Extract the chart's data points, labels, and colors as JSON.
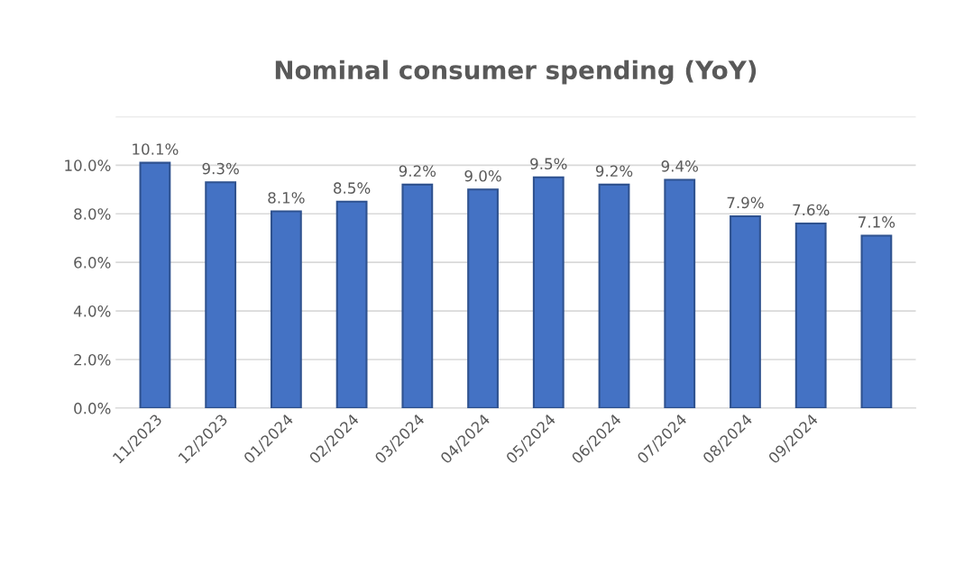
{
  "chart_data": {
    "type": "bar",
    "title": "Nominal consumer spending (YoY)",
    "categories": [
      "11/2023",
      "12/2023",
      "01/2024",
      "02/2024",
      "03/2024",
      "04/2024",
      "05/2024",
      "06/2024",
      "07/2024",
      "08/2024",
      "09/2024",
      null
    ],
    "values": [
      10.1,
      9.3,
      8.1,
      8.5,
      9.2,
      9.0,
      9.5,
      9.2,
      9.4,
      7.9,
      7.6,
      7.1
    ],
    "value_labels": [
      "10.1%",
      "9.3%",
      "8.1%",
      "8.5%",
      "9.2%",
      "9.0%",
      "9.5%",
      "9.2%",
      "9.4%",
      "7.9%",
      "7.6%",
      "7.1%"
    ],
    "color": "#4472c4",
    "ylim": [
      0,
      12
    ],
    "yticks": [
      {
        "value": 0,
        "label": "0.0%"
      },
      {
        "value": 2,
        "label": "2.0%"
      },
      {
        "value": 4,
        "label": "4.0%"
      },
      {
        "value": 6,
        "label": "6.0%"
      },
      {
        "value": 8,
        "label": "8.0%"
      },
      {
        "value": 10,
        "label": "10.0%"
      },
      {
        "value": 12,
        "label": null
      }
    ],
    "grid": "y"
  }
}
